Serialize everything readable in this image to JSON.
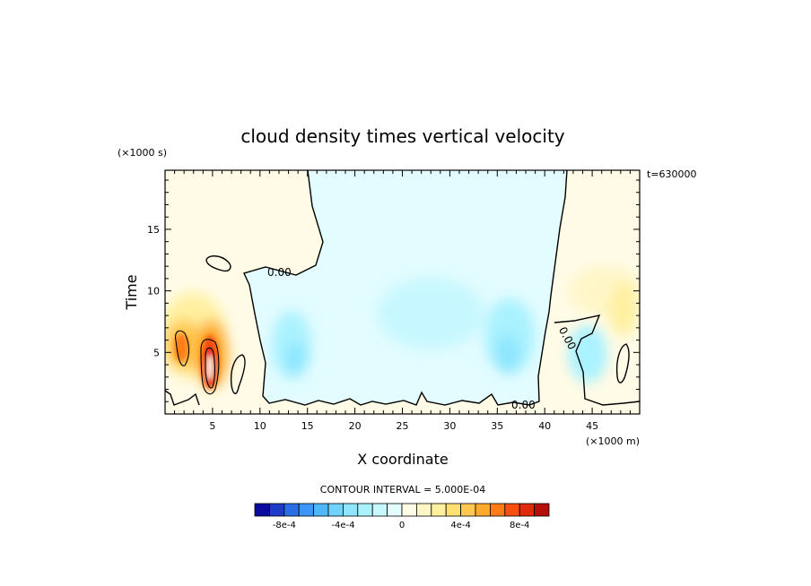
{
  "chart_data": {
    "type": "heatmap",
    "title": "cloud density times vertical velocity",
    "xlabel": "X coordinate",
    "ylabel": "Time",
    "x_unit": "(×1000 m)",
    "y_unit": "(×1000 s)",
    "annotation": "t=630000",
    "contour_interval_text": "CONTOUR INTERVAL = 5.000E-04",
    "contour_interval": 0.0005,
    "xlim": [
      0,
      50
    ],
    "ylim": [
      0,
      19.8
    ],
    "x_ticks": [
      "5",
      "10",
      "15",
      "20",
      "25",
      "30",
      "35",
      "40",
      "45"
    ],
    "y_ticks": [
      "5",
      "10",
      "15"
    ],
    "contour_labels": [
      "0.00",
      "0.00",
      "0.00"
    ],
    "colorbar": {
      "levels": [
        -0.001,
        -0.0009,
        -0.0008,
        -0.0007,
        -0.0006,
        -0.0005,
        -0.0004,
        -0.0003,
        -0.0002,
        -0.0001,
        0,
        0.0001,
        0.0002,
        0.0003,
        0.0004,
        0.0005,
        0.0006,
        0.0007,
        0.0008,
        0.0009,
        0.001
      ],
      "colors": [
        "#0a0a9e",
        "#1e3cc8",
        "#2a6ee6",
        "#3c96f5",
        "#4fb8fb",
        "#6ed2fd",
        "#8ee6fe",
        "#aaf2ff",
        "#c8f8ff",
        "#e2fcff",
        "#fffbe6",
        "#fff6c8",
        "#fff0a0",
        "#ffe070",
        "#ffc850",
        "#ffaa2a",
        "#ff7d14",
        "#f5500f",
        "#e02a0c",
        "#b40f0a"
      ],
      "tick_labels": [
        "-8e-4",
        "-4e-4",
        "0",
        "4e-4",
        "8e-4"
      ],
      "tick_values": [
        -0.0008,
        -0.0004,
        0,
        0.0004,
        0.0008
      ]
    },
    "features": [
      {
        "kind": "positive_core",
        "x": 4.7,
        "y": 3.2,
        "peak": 0.0009
      },
      {
        "kind": "positive_cell",
        "x": 1.6,
        "y": 5.0,
        "peak": 0.0006
      },
      {
        "kind": "positive_weak",
        "x": 47.5,
        "y": 9.5,
        "peak": 0.0002
      },
      {
        "kind": "negative_region",
        "x": 27.0,
        "y": 10.0,
        "peak": -0.0001
      },
      {
        "kind": "negative_cell",
        "x": 13.5,
        "y": 5.5,
        "peak": -0.0003
      },
      {
        "kind": "negative_cell",
        "x": 34.5,
        "y": 5.5,
        "peak": -0.0003
      },
      {
        "kind": "negative_cell",
        "x": 44.5,
        "y": 5.0,
        "peak": -0.0003
      }
    ]
  }
}
